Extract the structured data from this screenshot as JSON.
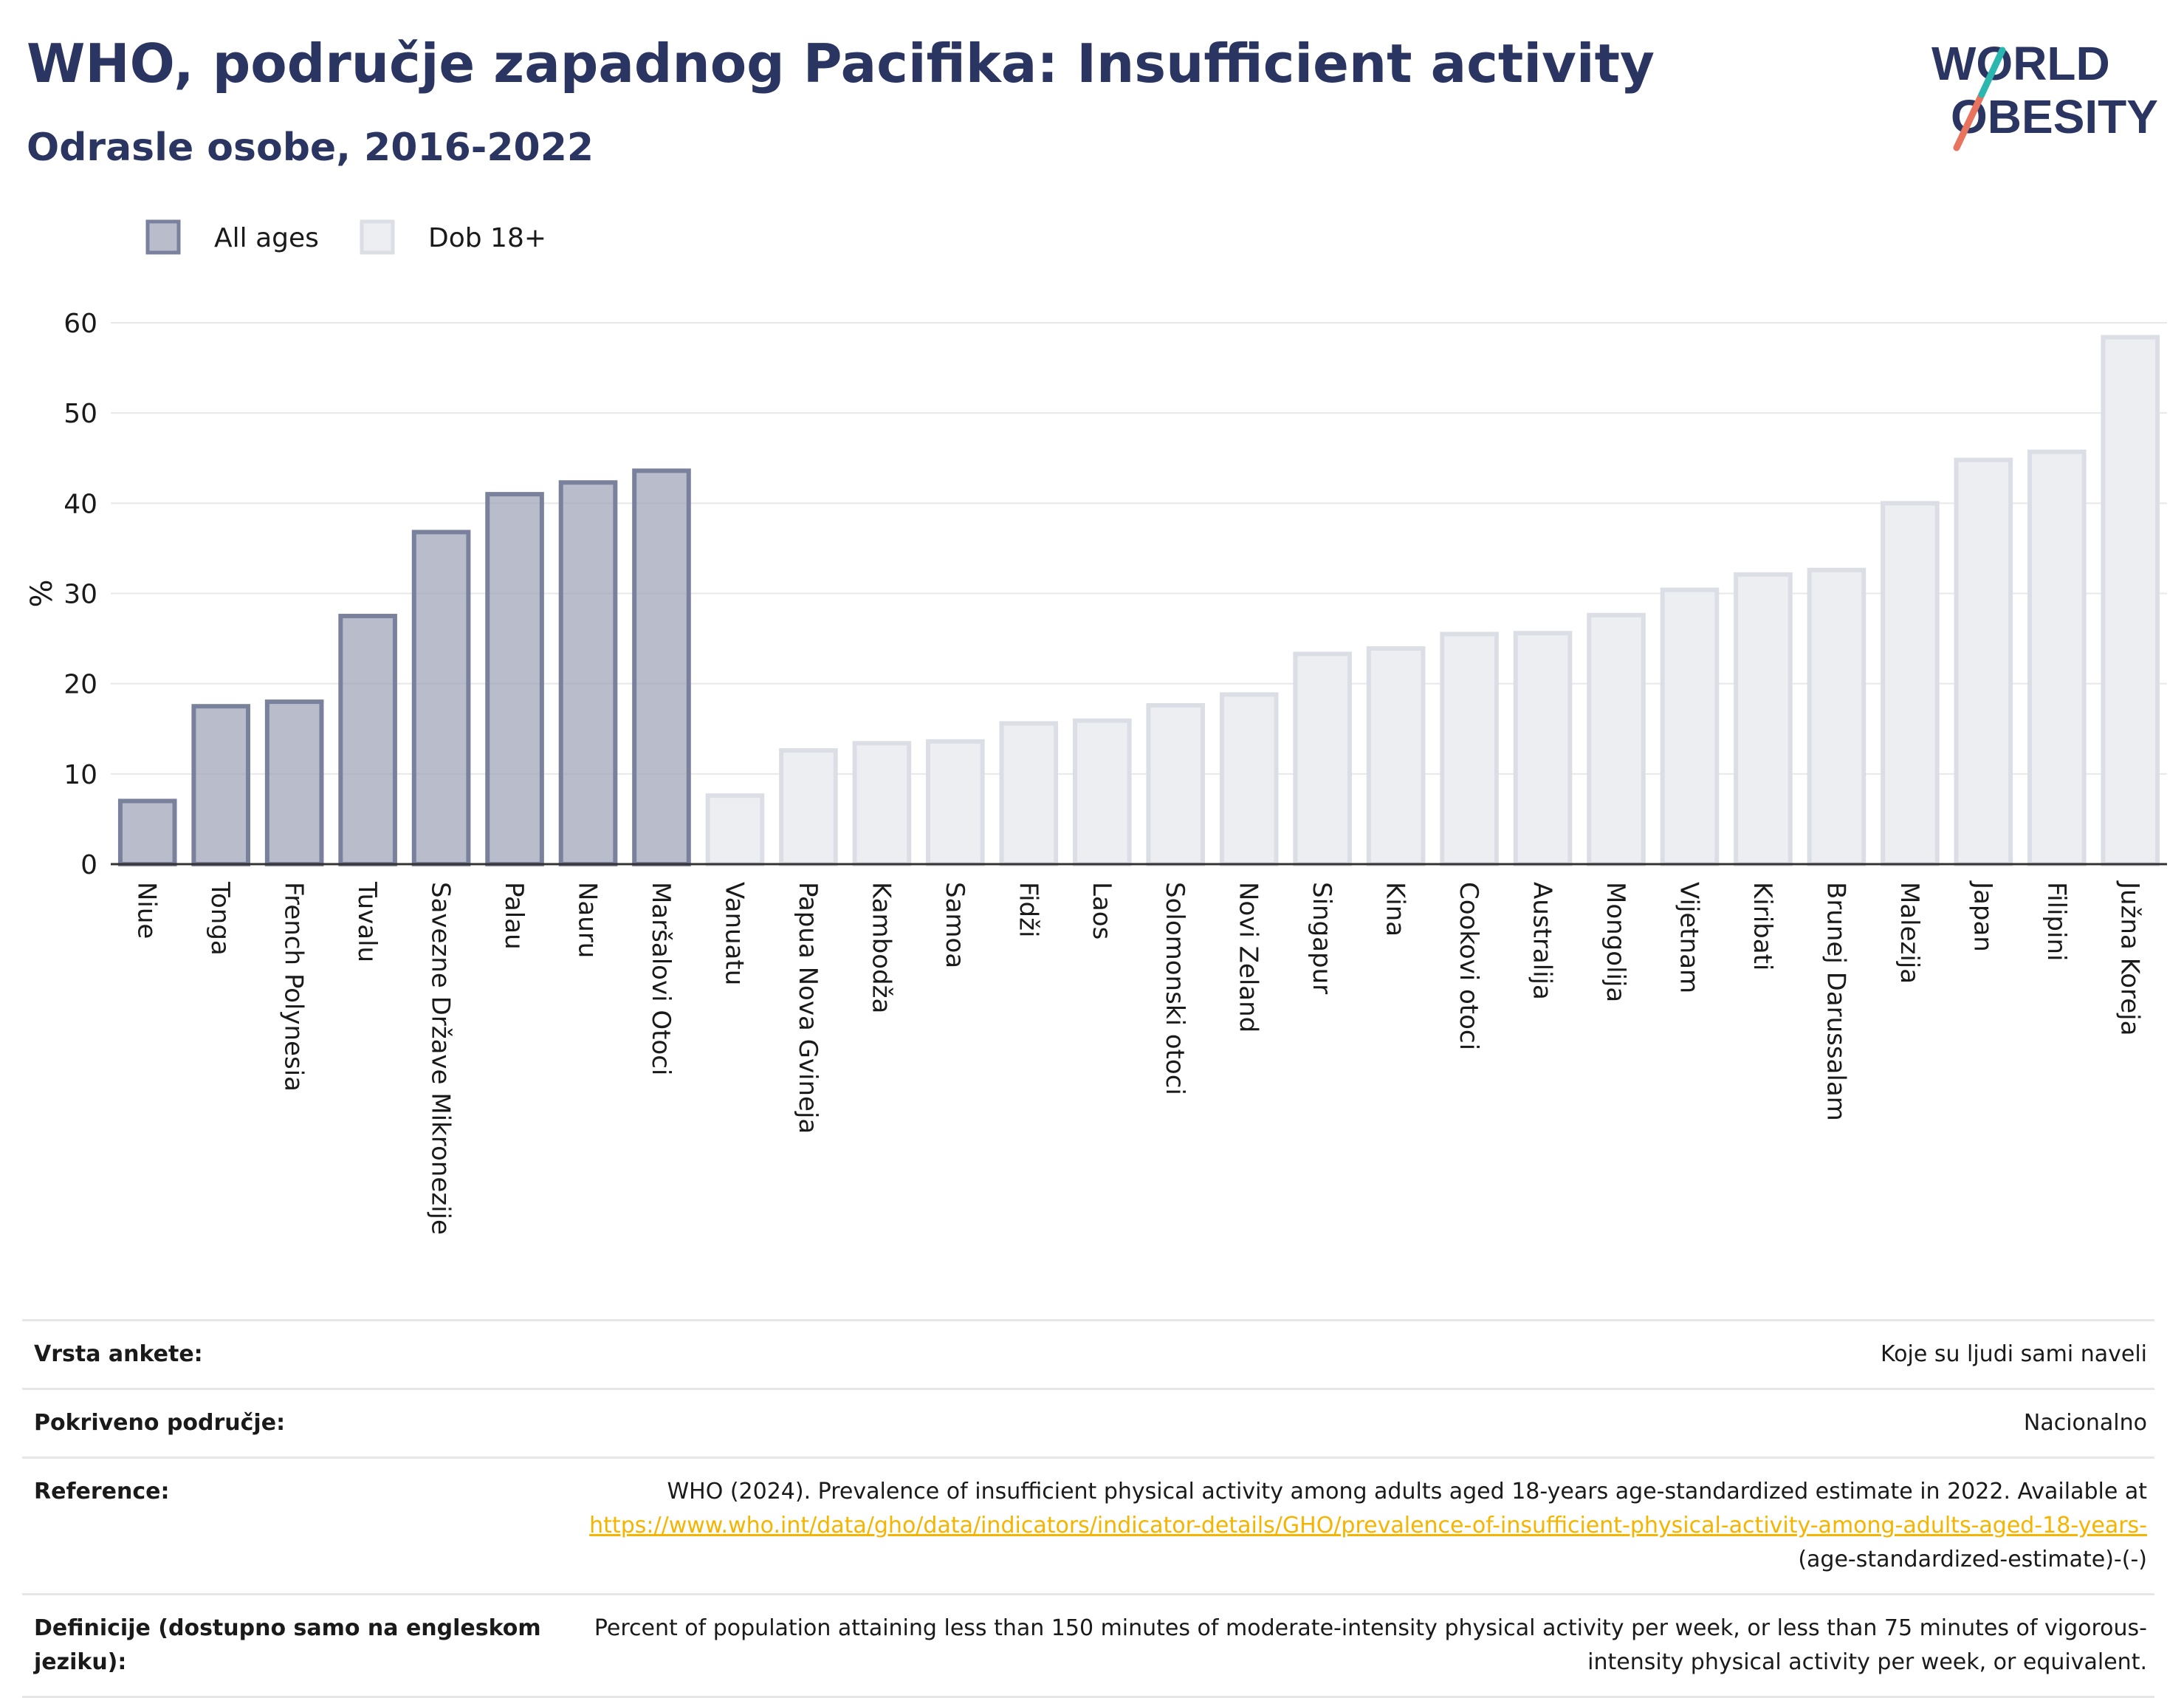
{
  "title": "WHO, područje zapadnog Pacifika: Insufficient activity",
  "subtitle": "Odrasle osobe, 2016-2022",
  "logo": {
    "line1": "WORLD",
    "line2": "OBESITY"
  },
  "colors": {
    "title": "#2b3561",
    "all_ages_fill": "#9ba1b5",
    "all_ages_stroke": "#7a819c",
    "adult_fill": "#edeef2",
    "adult_stroke": "#dcdee6",
    "accent_teal": "#2bb7b0",
    "accent_coral": "#e8735f",
    "link": "#f5b400"
  },
  "chart_data": {
    "type": "bar",
    "ylabel": "%",
    "ylim": [
      0,
      60
    ],
    "yticks": [
      0,
      10,
      20,
      30,
      40,
      50,
      60
    ],
    "grid": true,
    "legend_position": "top-left",
    "series": [
      {
        "name": "All ages",
        "categories": [
          "Niue",
          "Tonga",
          "French Polynesia",
          "Tuvalu",
          "Savezne Države Mikronezije",
          "Palau",
          "Nauru",
          "Maršalovi Otoci"
        ],
        "values": [
          7,
          17.5,
          18,
          27.5,
          36.8,
          41,
          42.3,
          43.6
        ]
      },
      {
        "name": "Dob 18+",
        "categories": [
          "Vanuatu",
          "Papua Nova Gvineja",
          "Kambodža",
          "Samoa",
          "Fidži",
          "Laos",
          "Solomonski otoci",
          "Novi Zeland",
          "Singapur",
          "Kina",
          "Cookovi otoci",
          "Australija",
          "Mongolija",
          "Vijetnam",
          "Kiribati",
          "Brunej Darussalam",
          "Malezija",
          "Japan",
          "Filipini",
          "Južna Koreja"
        ],
        "values": [
          7.6,
          12.6,
          13.4,
          13.6,
          15.6,
          15.9,
          17.6,
          18.8,
          23.3,
          23.9,
          25.5,
          25.6,
          27.6,
          30.4,
          32.1,
          32.6,
          40,
          44.8,
          45.7,
          58.4
        ]
      }
    ]
  },
  "meta": [
    {
      "label": "Vrsta ankete:",
      "value": "Koje su ljudi sami naveli"
    },
    {
      "label": "Pokriveno područje:",
      "value": "Nacionalno"
    },
    {
      "label": "Reference:",
      "value": "WHO (2024). Prevalence of insufficient physical activity among adults aged 18-years age-standardized estimate in 2022. Available at",
      "link": "https://www.who.int/data/gho/data/indicators/indicator-details/GHO/prevalence-of-insufficient-physical-activity-among-adults-aged-18-years-",
      "suffix": "(age-standardized-estimate)-(-)"
    },
    {
      "label": "Definicije (dostupno samo na engleskom jeziku):",
      "value": "Percent of population attaining less than 150 minutes of moderate-intensity physical activity per week, or less than 75 minutes of vigorous-intensity physical activity per week, or equivalent."
    }
  ]
}
